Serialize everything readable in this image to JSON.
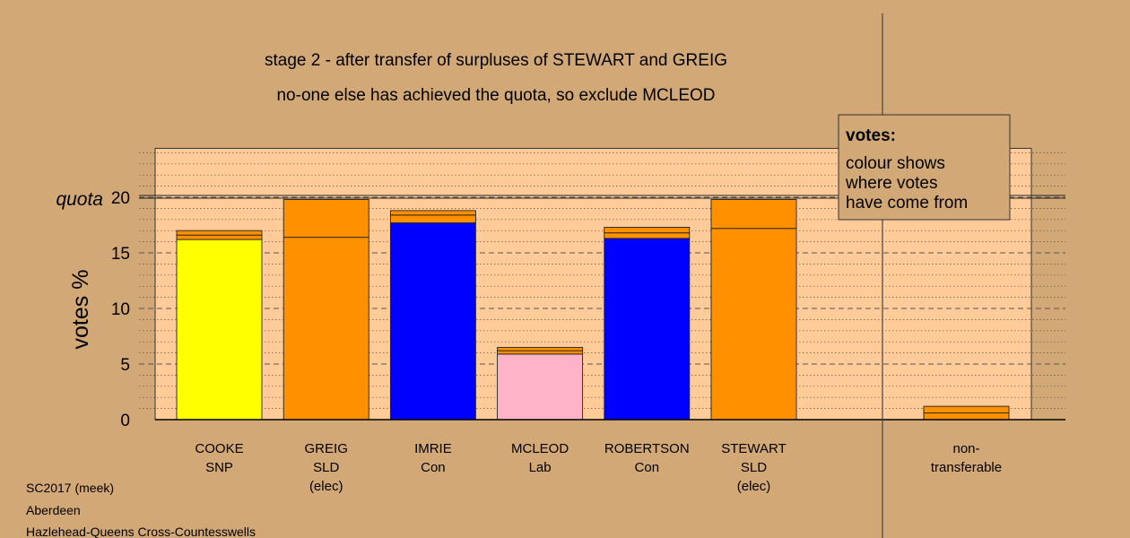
{
  "chart_data": {
    "type": "bar",
    "title": "stage 2 - after transfer of surpluses of STEWART and GREIG",
    "subtitle": "no-one else has achieved the quota, so exclude MCLEOD",
    "ylabel": "votes %",
    "quota_label": "quota",
    "quota": 20,
    "ylim": [
      0,
      25
    ],
    "yticks": [
      0,
      5,
      10,
      15,
      20
    ],
    "grid": true,
    "legend": {
      "title": "votes:",
      "lines": [
        "colour shows",
        "where votes",
        "have come from"
      ],
      "placement": "top-right"
    },
    "colors": {
      "SNP": "#ffff00",
      "SLD": "#ff9000",
      "Con": "#0000ff",
      "Lab": "#ffb3c8",
      "plot_bg": "#ffcc99",
      "page_bg": "#d2a877"
    },
    "candidates": [
      {
        "name": "COOKE",
        "party": "SNP",
        "note": "",
        "segments": [
          {
            "from": "SNP",
            "value": 16.2
          },
          {
            "from": "SLD",
            "value": 0.4
          },
          {
            "from": "SLD",
            "value": 0.4
          }
        ]
      },
      {
        "name": "GREIG",
        "party": "SLD",
        "note": "(elec)",
        "segments": [
          {
            "from": "SLD",
            "value": 16.4
          },
          {
            "from": "SLD",
            "value": 3.4
          }
        ]
      },
      {
        "name": "IMRIE",
        "party": "Con",
        "note": "",
        "segments": [
          {
            "from": "Con",
            "value": 17.7
          },
          {
            "from": "SLD",
            "value": 0.7
          },
          {
            "from": "SLD",
            "value": 0.4
          }
        ]
      },
      {
        "name": "MCLEOD",
        "party": "Lab",
        "note": "",
        "segments": [
          {
            "from": "Lab",
            "value": 5.9
          },
          {
            "from": "SLD",
            "value": 0.3
          },
          {
            "from": "SLD",
            "value": 0.3
          }
        ]
      },
      {
        "name": "ROBERTSON",
        "party": "Con",
        "note": "",
        "segments": [
          {
            "from": "Con",
            "value": 16.3
          },
          {
            "from": "SLD",
            "value": 0.5
          },
          {
            "from": "SLD",
            "value": 0.5
          }
        ]
      },
      {
        "name": "STEWART",
        "party": "SLD",
        "note": "(elec)",
        "segments": [
          {
            "from": "SLD",
            "value": 17.2
          },
          {
            "from": "SLD",
            "value": 2.6
          }
        ]
      }
    ],
    "nontransferable": {
      "label_lines": [
        "non-",
        "transferable"
      ],
      "segments": [
        {
          "from": "SLD",
          "value": 0.6
        },
        {
          "from": "SLD",
          "value": 0.6
        }
      ]
    }
  },
  "footer": {
    "lines": [
      "SC2017 (meek)",
      "Aberdeen",
      "Hazlehead-Queens Cross-Countesswells"
    ]
  }
}
